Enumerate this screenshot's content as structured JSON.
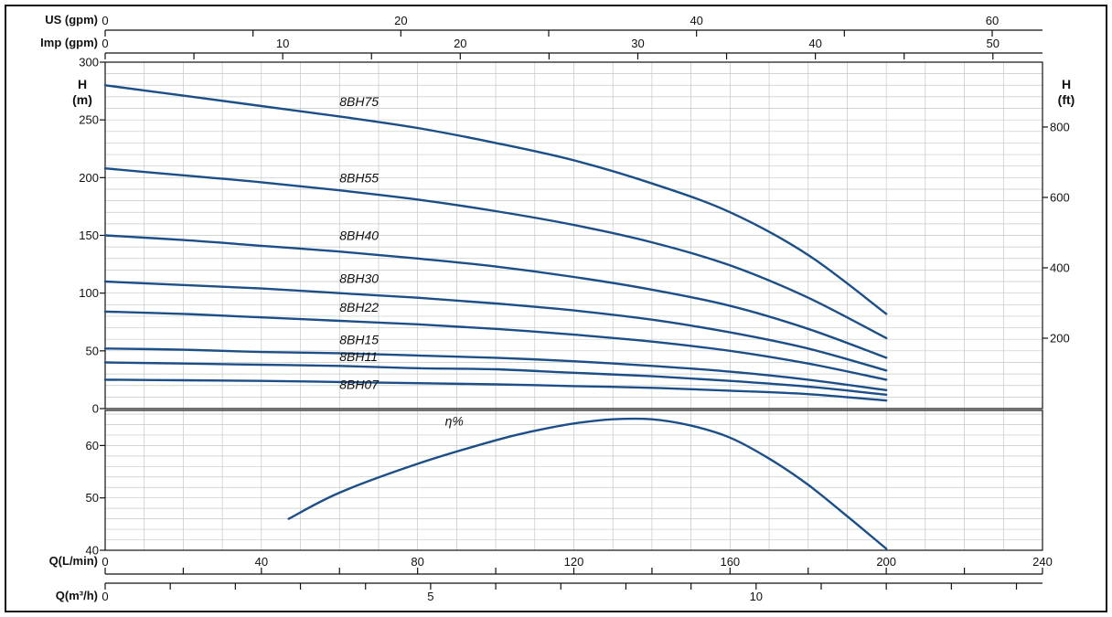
{
  "figure": {
    "background": "#ffffff",
    "frame_color": "#111111",
    "grid_color": "#c3c9c3",
    "curve_color": "#1c4e87",
    "text_color": "#111111"
  },
  "chart_data": {
    "type": "line",
    "description": "Pump head vs flow performance curves (8BH series) with efficiency curve",
    "x_axes": {
      "us_gpm": {
        "label": "US (gpm)",
        "tick_labels": [
          0,
          20,
          40,
          60
        ],
        "minor_step": 10,
        "lmin_per_unit": 3.7854
      },
      "imp_gpm": {
        "label": "Imp (gpm)",
        "tick_labels": [
          0,
          10,
          20,
          30,
          40,
          50
        ],
        "minor_step": 5,
        "lmin_per_unit": 4.5461
      },
      "q_lmin": {
        "label": "Q(L/min)",
        "tick_labels": [
          0,
          40,
          80,
          120,
          160,
          200,
          240
        ],
        "minor_step": 20,
        "lmin_per_unit": 1
      },
      "q_m3h": {
        "label": "Q(m³/h)",
        "tick_labels": [
          0,
          5,
          10
        ],
        "minor_step": 1,
        "lmin_per_unit": 16.6667
      }
    },
    "main_panel": {
      "y_left_label_1": "H",
      "y_left_label_2": "(m)",
      "y_right_label_1": "H",
      "y_right_label_2": "(ft)",
      "xlim": [
        0,
        240
      ],
      "ylim": [
        0,
        300
      ],
      "y_ticks_m": [
        0,
        50,
        100,
        150,
        200,
        250,
        300
      ],
      "y_ticks_ft": [
        200,
        400,
        600,
        800
      ],
      "ft_to_m": 0.3048,
      "grid_step_x_lmin": 10,
      "grid_step_y_m": 10,
      "series": [
        {
          "name": "8BH75",
          "label_at": [
            60,
            262
          ],
          "points": [
            [
              0,
              280
            ],
            [
              20,
              271
            ],
            [
              40,
              262
            ],
            [
              60,
              253
            ],
            [
              80,
              243
            ],
            [
              100,
              230
            ],
            [
              120,
              215
            ],
            [
              140,
              195
            ],
            [
              160,
              170
            ],
            [
              180,
              133
            ],
            [
              200,
              82
            ]
          ]
        },
        {
          "name": "8BH55",
          "label_at": [
            60,
            196
          ],
          "points": [
            [
              0,
              208
            ],
            [
              20,
              202
            ],
            [
              40,
              196
            ],
            [
              60,
              189
            ],
            [
              80,
              181
            ],
            [
              100,
              171
            ],
            [
              120,
              159
            ],
            [
              140,
              144
            ],
            [
              160,
              124
            ],
            [
              180,
              96
            ],
            [
              200,
              61
            ]
          ]
        },
        {
          "name": "8BH40",
          "label_at": [
            60,
            146
          ],
          "points": [
            [
              0,
              150
            ],
            [
              20,
              146
            ],
            [
              40,
              141
            ],
            [
              60,
              136
            ],
            [
              80,
              130
            ],
            [
              100,
              123
            ],
            [
              120,
              114
            ],
            [
              140,
              103
            ],
            [
              160,
              89
            ],
            [
              180,
              69
            ],
            [
              200,
              44
            ]
          ]
        },
        {
          "name": "8BH30",
          "label_at": [
            60,
            109
          ],
          "points": [
            [
              0,
              110
            ],
            [
              20,
              107
            ],
            [
              40,
              104
            ],
            [
              60,
              100
            ],
            [
              80,
              96
            ],
            [
              100,
              91
            ],
            [
              120,
              85
            ],
            [
              140,
              77
            ],
            [
              160,
              66
            ],
            [
              180,
              52
            ],
            [
              200,
              33
            ]
          ]
        },
        {
          "name": "8BH22",
          "label_at": [
            60,
            84
          ],
          "points": [
            [
              0,
              84
            ],
            [
              20,
              82
            ],
            [
              40,
              79
            ],
            [
              60,
              76
            ],
            [
              80,
              73
            ],
            [
              100,
              69
            ],
            [
              120,
              64
            ],
            [
              140,
              58
            ],
            [
              160,
              50
            ],
            [
              180,
              39
            ],
            [
              200,
              25
            ]
          ]
        },
        {
          "name": "8BH15",
          "label_at": [
            60,
            56
          ],
          "points": [
            [
              0,
              52
            ],
            [
              20,
              51
            ],
            [
              40,
              49
            ],
            [
              60,
              48
            ],
            [
              80,
              46
            ],
            [
              100,
              44
            ],
            [
              120,
              41
            ],
            [
              140,
              37
            ],
            [
              160,
              32
            ],
            [
              180,
              25
            ],
            [
              200,
              16
            ]
          ]
        },
        {
          "name": "8BH11",
          "label_at": [
            60,
            41
          ],
          "points": [
            [
              0,
              40
            ],
            [
              20,
              39
            ],
            [
              40,
              38
            ],
            [
              60,
              37
            ],
            [
              80,
              35
            ],
            [
              100,
              34
            ],
            [
              120,
              31
            ],
            [
              140,
              28
            ],
            [
              160,
              24
            ],
            [
              180,
              19
            ],
            [
              200,
              12
            ]
          ]
        },
        {
          "name": "8BH07",
          "label_at": [
            60,
            17
          ],
          "points": [
            [
              0,
              25
            ],
            [
              20,
              24.5
            ],
            [
              40,
              24
            ],
            [
              60,
              23
            ],
            [
              80,
              22
            ],
            [
              100,
              21
            ],
            [
              120,
              19.5
            ],
            [
              140,
              18
            ],
            [
              160,
              15.5
            ],
            [
              180,
              12.5
            ],
            [
              200,
              7
            ]
          ]
        }
      ]
    },
    "efficiency_panel": {
      "label": "η%",
      "ylim": [
        40,
        66.7
      ],
      "y_ticks": [
        40,
        50,
        60
      ],
      "grid_step_y": 2,
      "label_at": [
        87,
        63.8
      ],
      "points": [
        [
          47,
          46
        ],
        [
          60,
          51
        ],
        [
          80,
          56.5
        ],
        [
          100,
          61
        ],
        [
          110,
          62.8
        ],
        [
          120,
          64.2
        ],
        [
          130,
          65
        ],
        [
          140,
          65
        ],
        [
          150,
          63.8
        ],
        [
          160,
          61.5
        ],
        [
          170,
          57.5
        ],
        [
          180,
          52.5
        ],
        [
          190,
          46.5
        ],
        [
          200,
          40.3
        ]
      ]
    }
  }
}
